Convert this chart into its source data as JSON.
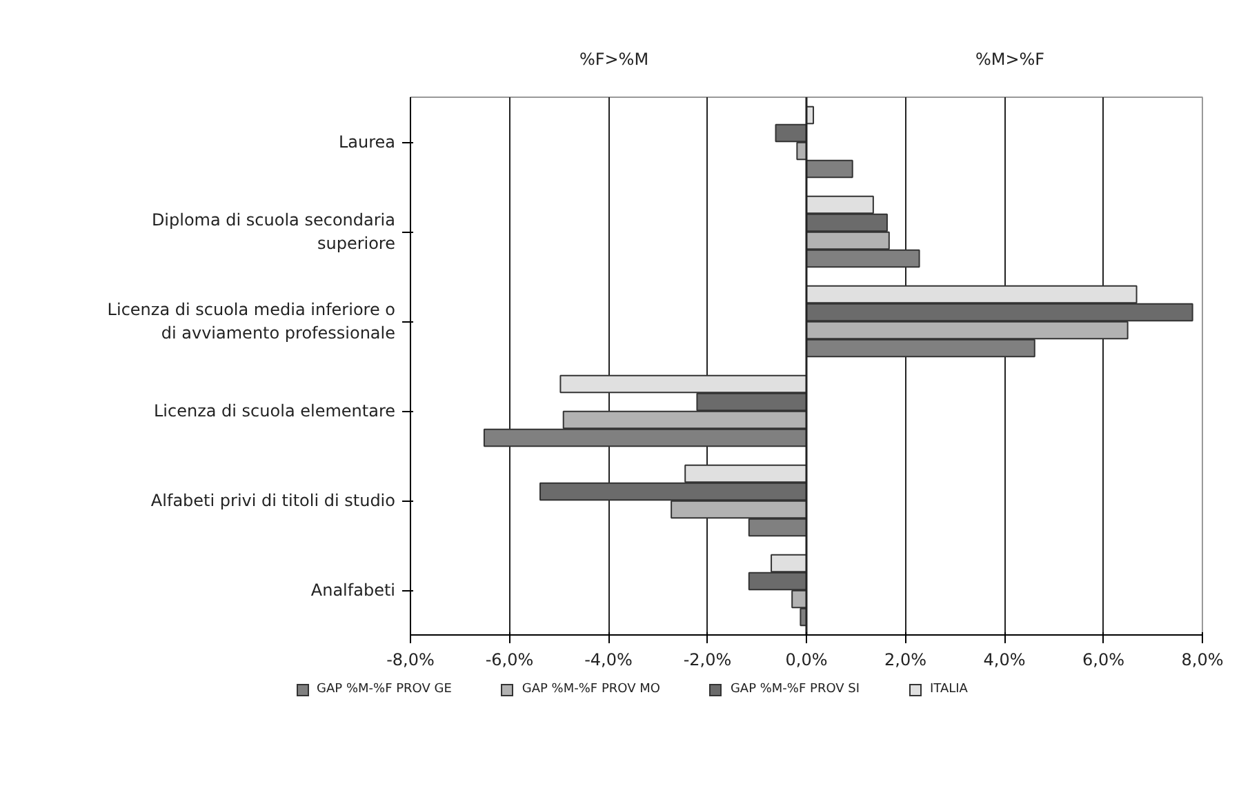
{
  "chart_data": {
    "type": "bar",
    "orientation": "horizontal",
    "categories": [
      "Laurea",
      "Diploma di scuola secondaria\nsuperiore",
      "Licenza di scuola media inferiore o\ndi avviamento professionale",
      "Licenza di scuola elementare",
      "Alfabeti privi di titoli di studio",
      "Analfabeti"
    ],
    "series": [
      {
        "name": "GAP %M-%F PROV GE",
        "color": "#808080",
        "values": [
          0.93,
          2.28,
          4.61,
          -6.51,
          -1.16,
          -0.12
        ]
      },
      {
        "name": "GAP %M-%F PROV MO",
        "color": "#b2b2b2",
        "values": [
          -0.19,
          1.67,
          6.49,
          -4.91,
          -2.73,
          -0.29
        ]
      },
      {
        "name": "GAP %M-%F PROV SI",
        "color": "#6b6b6b",
        "values": [
          -0.62,
          1.63,
          7.8,
          -2.21,
          -5.38,
          -1.16
        ]
      },
      {
        "name": "ITALIA",
        "color": "#e0e0e0",
        "values": [
          0.14,
          1.35,
          6.67,
          -4.97,
          -2.45,
          -0.71
        ]
      }
    ],
    "xlim": [
      -8,
      8
    ],
    "xticks": [
      {
        "value": -8,
        "label": "-8,0%"
      },
      {
        "value": -6,
        "label": "-6,0%"
      },
      {
        "value": -4,
        "label": "-4,0%"
      },
      {
        "value": -2,
        "label": "-2,0%"
      },
      {
        "value": 0,
        "label": "0,0%"
      },
      {
        "value": 2,
        "label": "2,0%"
      },
      {
        "value": 4,
        "label": "4,0%"
      },
      {
        "value": 6,
        "label": "6,0%"
      },
      {
        "value": 8,
        "label": "8,0%"
      }
    ],
    "annotations": [
      "%F>%M",
      "%M>%F"
    ],
    "grid": "x",
    "legend": "bottom"
  }
}
